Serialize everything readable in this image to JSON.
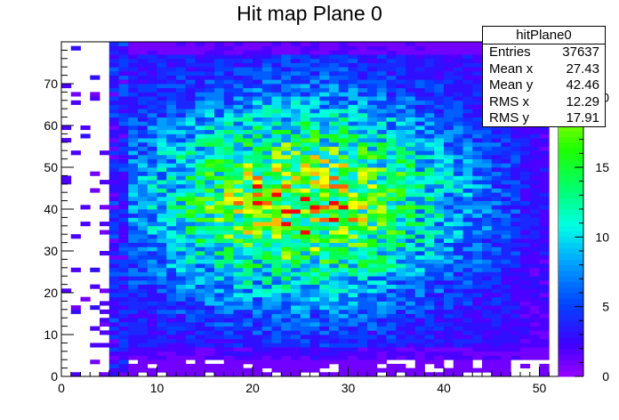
{
  "chart_data": {
    "type": "heatmap",
    "title": "Hit map Plane 0",
    "xlim": [
      0,
      52
    ],
    "ylim": [
      0,
      80
    ],
    "x_ticks": [
      0,
      10,
      20,
      30,
      40,
      50
    ],
    "y_ticks": [
      0,
      10,
      20,
      30,
      40,
      50,
      60,
      70
    ],
    "z_range": [
      0,
      24
    ],
    "z_ticks": [
      0,
      5,
      10,
      15,
      20
    ],
    "palette": "rainbow (violet → blue → cyan → green → yellow → red)",
    "cells": "51 x 80 bins of 1 unit; counts approximately 0–24, peaking near x≈25, y≈42, sparse in columns x<7 and at the top/bottom edges",
    "stats": {
      "name": "hitPlane0",
      "rows": [
        {
          "label": "Entries",
          "value": "37637"
        },
        {
          "label": "Mean x",
          "value": "27.43"
        },
        {
          "label": "Mean y",
          "value": "42.46"
        },
        {
          "label": "RMS x",
          "value": "12.29"
        },
        {
          "label": "RMS y",
          "value": "17.91"
        }
      ]
    }
  }
}
